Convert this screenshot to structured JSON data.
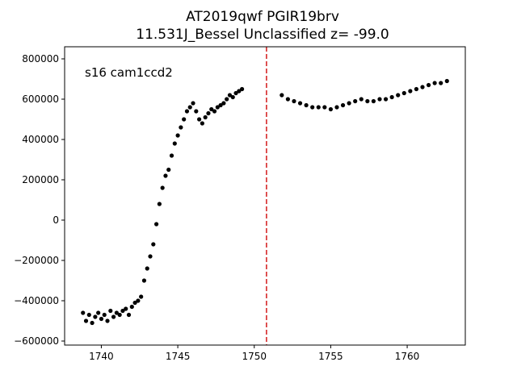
{
  "chart_data": {
    "type": "scatter",
    "title": "AT2019qwf  PGIR19brv",
    "subtitle": "11.531J_Bessel Unclassified z= -99.0",
    "xlabel": "",
    "ylabel": "",
    "xlim": [
      1737.6,
      1763.8
    ],
    "ylim": [
      -620000,
      860000
    ],
    "xticks": [
      1740,
      1745,
      1750,
      1755,
      1760
    ],
    "yticks": [
      -600000,
      -400000,
      -200000,
      0,
      200000,
      400000,
      600000,
      800000
    ],
    "xtick_labels": [
      "1740",
      "1745",
      "1750",
      "1755",
      "1760"
    ],
    "ytick_labels": [
      "−600000",
      "−400000",
      "−200000",
      "0",
      "200000",
      "400000",
      "600000",
      "800000"
    ],
    "annotation": "s16 cam1ccd2",
    "vline": {
      "x": 1750.8,
      "color": "#d62728",
      "style": "dashed"
    },
    "grid": false,
    "marker_color": "#000000",
    "series": [
      {
        "x": [
          1738.8,
          1739.0,
          1739.2,
          1739.4,
          1739.6,
          1739.8,
          1740.0,
          1740.2,
          1740.4,
          1740.6,
          1740.8,
          1741.0,
          1741.2,
          1741.4,
          1741.6,
          1741.8,
          1742.0,
          1742.2,
          1742.4,
          1742.6,
          1742.8,
          1743.0,
          1743.2,
          1743.4,
          1743.6,
          1743.8,
          1744.0,
          1744.2,
          1744.4,
          1744.6,
          1744.8,
          1745.0,
          1745.2,
          1745.4,
          1745.6,
          1745.8,
          1746.0,
          1746.2,
          1746.4,
          1746.6,
          1746.8,
          1747.0,
          1747.2,
          1747.4,
          1747.6,
          1747.8,
          1748.0,
          1748.2,
          1748.4,
          1748.6,
          1748.8,
          1749.0,
          1749.2,
          1751.8,
          1752.2,
          1752.6,
          1753.0,
          1753.4,
          1753.8,
          1754.2,
          1754.6,
          1755.0,
          1755.4,
          1755.8,
          1756.2,
          1756.6,
          1757.0,
          1757.4,
          1757.8,
          1758.2,
          1758.6,
          1759.0,
          1759.4,
          1759.8,
          1760.2,
          1760.6,
          1761.0,
          1761.4,
          1761.8,
          1762.2,
          1762.6
        ],
        "y": [
          -460000,
          -500000,
          -470000,
          -510000,
          -480000,
          -460000,
          -490000,
          -470000,
          -500000,
          -450000,
          -480000,
          -460000,
          -470000,
          -450000,
          -440000,
          -470000,
          -430000,
          -410000,
          -400000,
          -380000,
          -300000,
          -240000,
          -180000,
          -120000,
          -20000,
          80000,
          160000,
          220000,
          250000,
          320000,
          380000,
          420000,
          460000,
          500000,
          540000,
          560000,
          580000,
          540000,
          500000,
          480000,
          510000,
          530000,
          550000,
          540000,
          560000,
          570000,
          580000,
          600000,
          620000,
          610000,
          630000,
          640000,
          650000,
          620000,
          600000,
          590000,
          580000,
          570000,
          560000,
          560000,
          560000,
          550000,
          560000,
          570000,
          580000,
          590000,
          600000,
          590000,
          590000,
          600000,
          600000,
          610000,
          620000,
          630000,
          640000,
          650000,
          660000,
          670000,
          680000,
          680000,
          690000
        ]
      }
    ]
  }
}
